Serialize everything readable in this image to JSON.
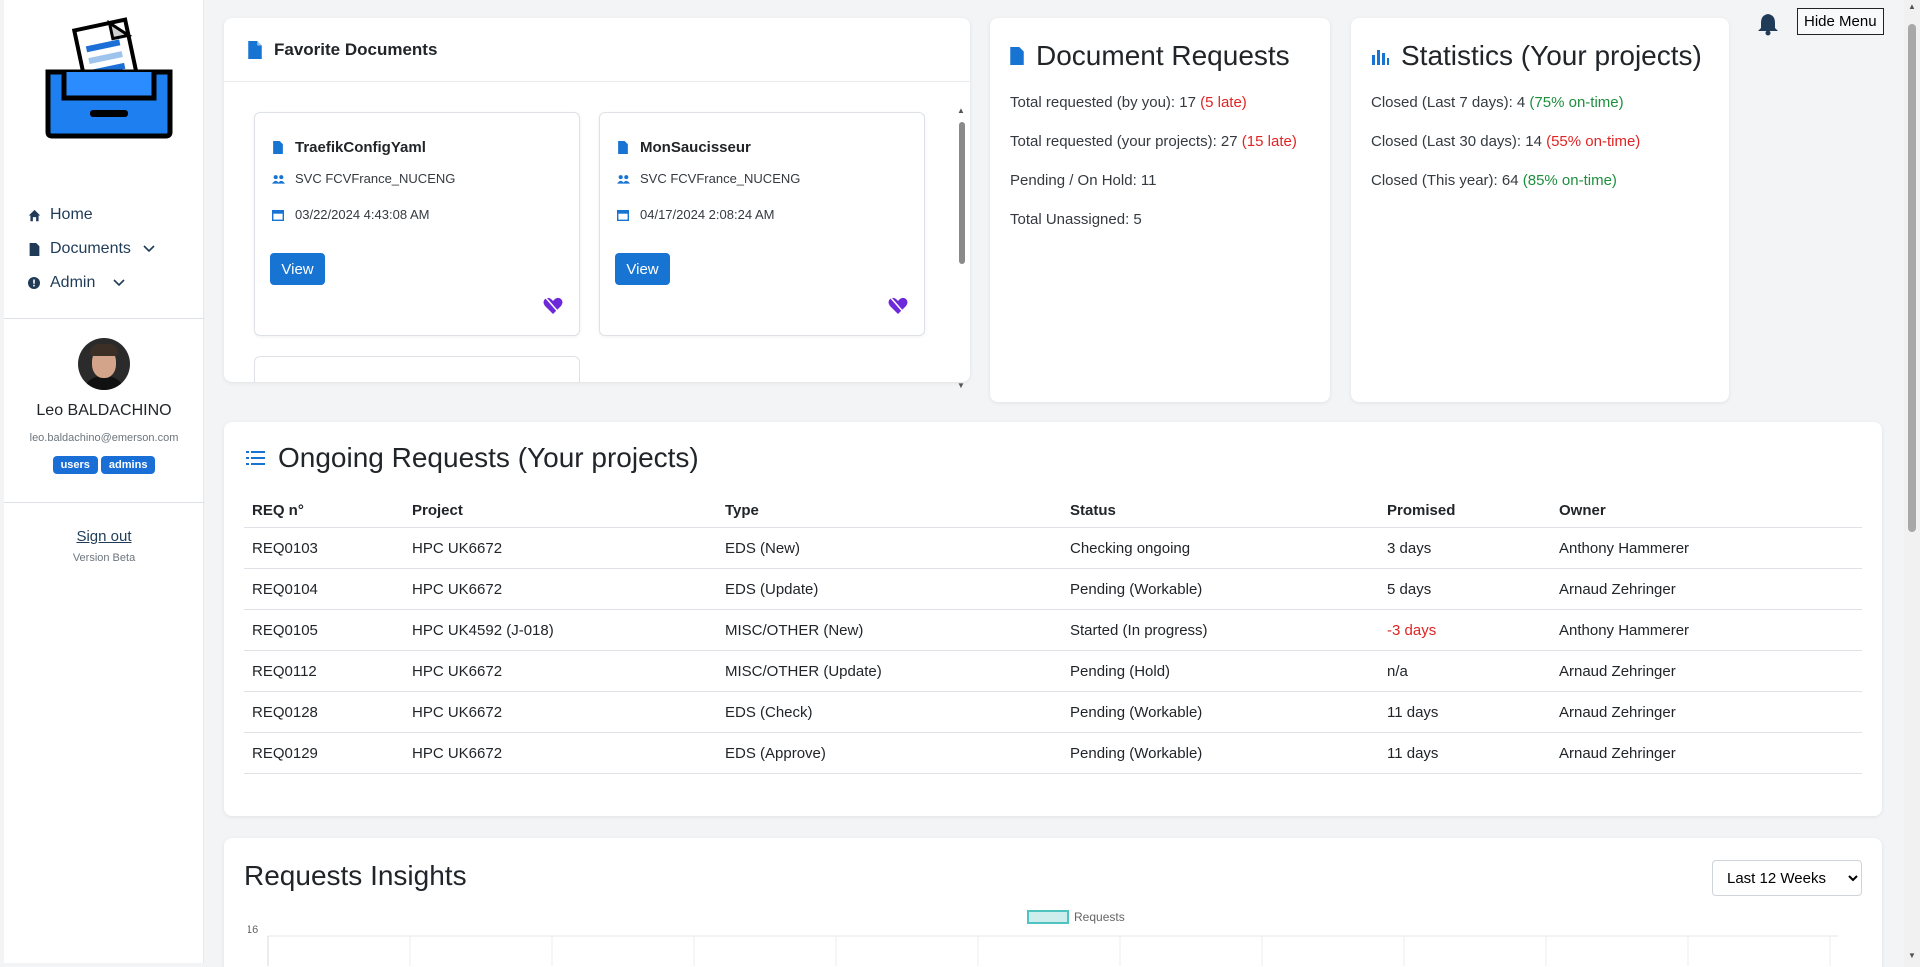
{
  "sidebar": {
    "nav": [
      {
        "label": "Home",
        "icon": "home-icon"
      },
      {
        "label": "Documents",
        "icon": "document-icon"
      },
      {
        "label": "Admin",
        "icon": "info-icon"
      }
    ],
    "user": {
      "name": "Leo BALDACHINO",
      "email": "leo.baldachino@emerson.com",
      "roles": [
        "users",
        "admins"
      ]
    },
    "signout_label": "Sign out",
    "version": "Version Beta"
  },
  "header": {
    "hide_menu_label": "Hide Menu"
  },
  "favorites": {
    "title": "Favorite Documents",
    "view_label": "View",
    "docs": [
      {
        "name": "TraefikConfigYaml",
        "owner": "SVC FCVFrance_NUCENG",
        "date": "03/22/2024 4:43:08 AM"
      },
      {
        "name": "MonSaucisseur",
        "owner": "SVC FCVFrance_NUCENG",
        "date": "04/17/2024 2:08:24 AM"
      }
    ]
  },
  "doc_requests": {
    "title": "Document Requests",
    "lines": [
      {
        "text": "Total requested (by you): 17 ",
        "note": "(5 late)"
      },
      {
        "text": "Total requested (your projects): 27 ",
        "note": "(15 late)"
      },
      {
        "text": "Pending / On Hold: 11",
        "note": ""
      },
      {
        "text": "Total Unassigned: 5",
        "note": ""
      }
    ]
  },
  "statistics": {
    "title": "Statistics (Your projects)",
    "lines": [
      {
        "text": "Closed (Last 7 days): 4 ",
        "note": "(75% on-time)",
        "note_color": "#1e8e3e"
      },
      {
        "text": "Closed (Last 30 days): 14 ",
        "note": "(55% on-time)",
        "note_color": "#e02424"
      },
      {
        "text": "Closed (This year): 64 ",
        "note": "(85% on-time)",
        "note_color": "#1e8e3e"
      }
    ]
  },
  "ongoing": {
    "title": "Ongoing Requests (Your projects)",
    "columns": [
      "REQ n°",
      "Project",
      "Type",
      "Status",
      "Promised",
      "Owner"
    ],
    "rows": [
      {
        "req": "REQ0103",
        "project": "HPC UK6672",
        "type": "EDS (New)",
        "status": "Checking ongoing",
        "promised": "3 days",
        "late": false,
        "owner": "Anthony Hammerer"
      },
      {
        "req": "REQ0104",
        "project": "HPC UK6672",
        "type": "EDS (Update)",
        "status": "Pending (Workable)",
        "promised": "5 days",
        "late": false,
        "owner": "Arnaud Zehringer"
      },
      {
        "req": "REQ0105",
        "project": "HPC UK4592 (J-018)",
        "type": "MISC/OTHER (New)",
        "status": "Started (In progress)",
        "promised": "-3 days",
        "late": true,
        "owner": "Anthony Hammerer"
      },
      {
        "req": "REQ0112",
        "project": "HPC UK6672",
        "type": "MISC/OTHER (Update)",
        "status": "Pending (Hold)",
        "promised": "n/a",
        "late": false,
        "owner": "Arnaud Zehringer"
      },
      {
        "req": "REQ0128",
        "project": "HPC UK6672",
        "type": "EDS (Check)",
        "status": "Pending (Workable)",
        "promised": "11 days",
        "late": false,
        "owner": "Arnaud Zehringer"
      },
      {
        "req": "REQ0129",
        "project": "HPC UK6672",
        "type": "EDS (Approve)",
        "status": "Pending (Workable)",
        "promised": "11 days",
        "late": false,
        "owner": "Arnaud Zehringer"
      }
    ]
  },
  "insights": {
    "title": "Requests Insights",
    "range_selected": "Last 12 Weeks",
    "legend": "Requests",
    "y_tick_top": "16"
  },
  "colors": {
    "accent": "#1874d2",
    "late": "#e02424",
    "ontime": "#1e8e3e",
    "legend_swatch": "#7fd4d0"
  }
}
